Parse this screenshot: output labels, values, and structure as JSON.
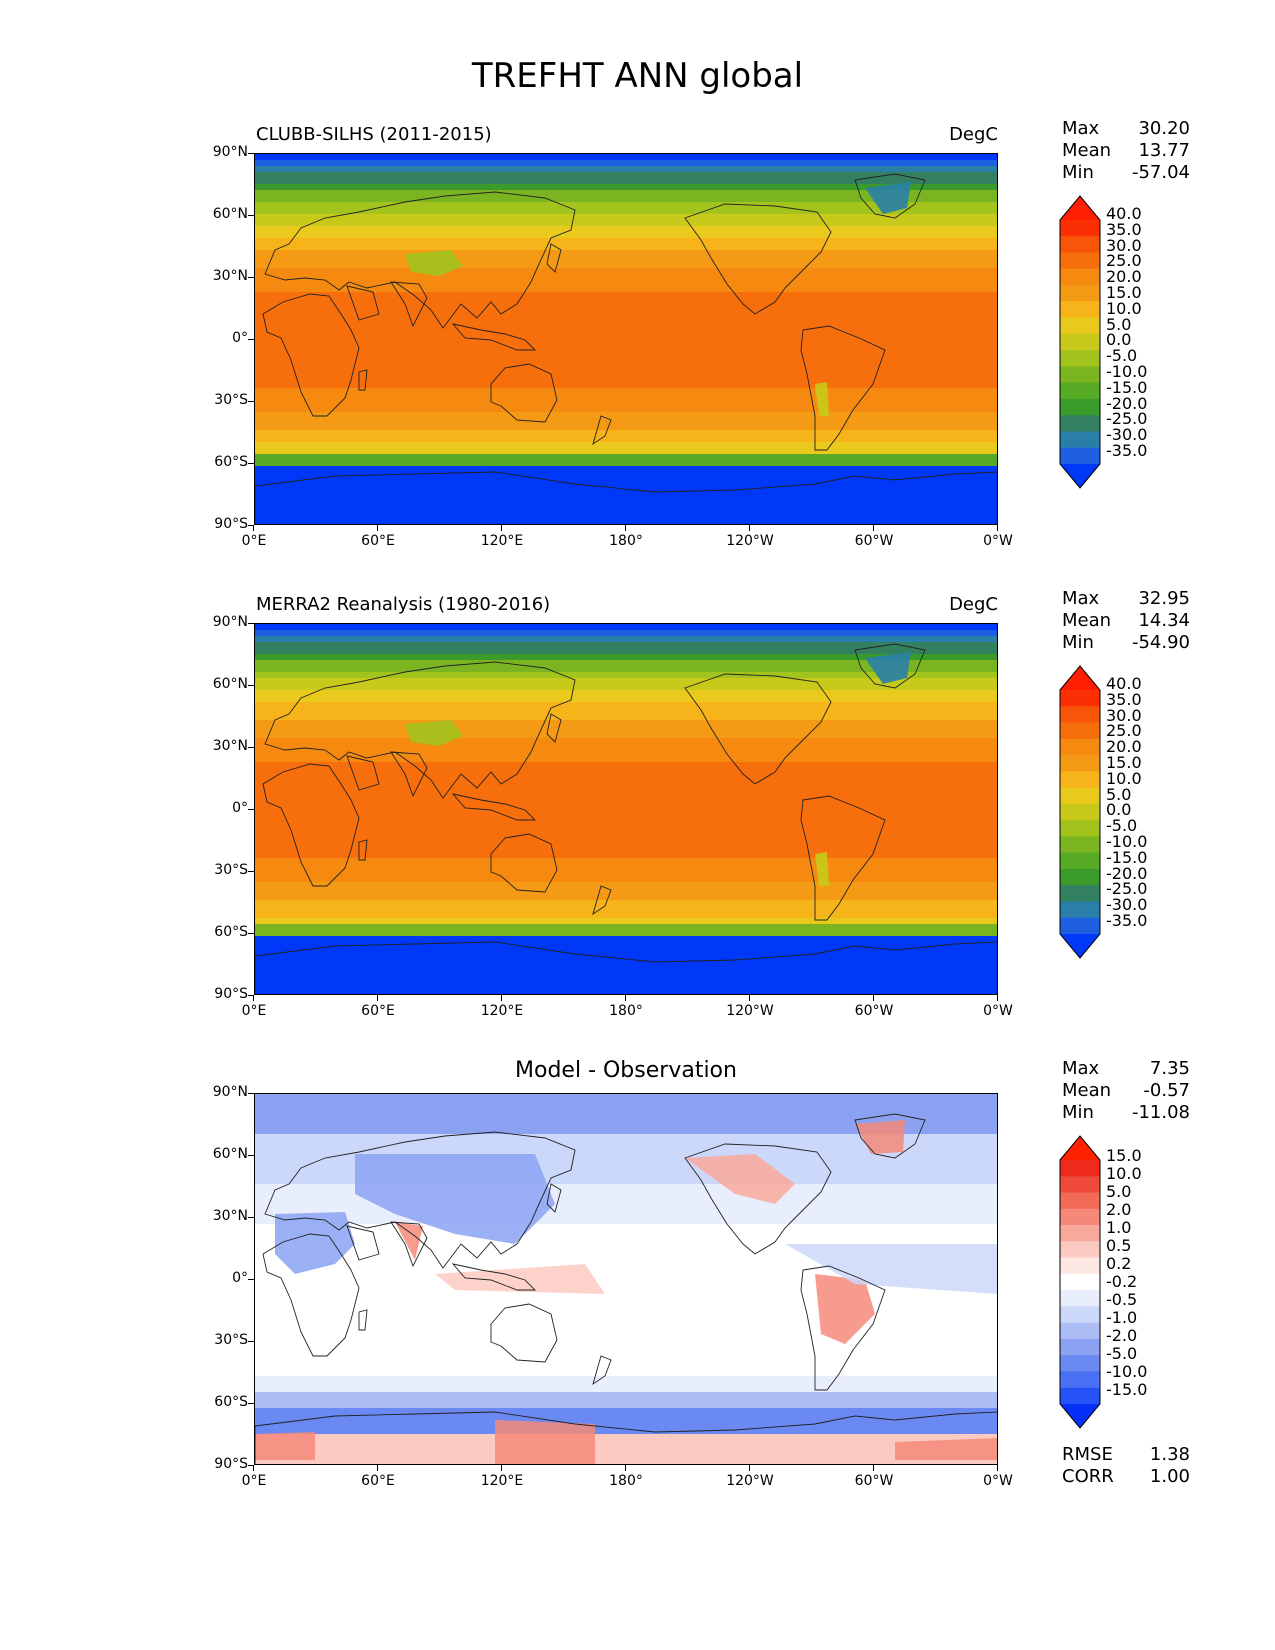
{
  "figure": {
    "title": "TREFHT ANN global"
  },
  "axes": {
    "lat_labels": [
      "90°N",
      "60°N",
      "30°N",
      "0°",
      "30°S",
      "60°S",
      "90°S"
    ],
    "lon_labels": [
      "0°E",
      "60°E",
      "120°E",
      "180°",
      "120°W",
      "60°W",
      "0°W"
    ]
  },
  "colors": {
    "temperature_scale": [
      "#0038f8",
      "#1e5fe0",
      "#2a7fa8",
      "#338060",
      "#3a9a2a",
      "#57aa23",
      "#7bb421",
      "#a3c31d",
      "#c8ca1b",
      "#e8c91c",
      "#f6b41a",
      "#f59a14",
      "#f68a10",
      "#f76e0c",
      "#f95508",
      "#fa2f04",
      "#ff1e00"
    ],
    "difference_scale": [
      "#0530f8",
      "#2452f6",
      "#4a70f3",
      "#6a89f2",
      "#8ba2f3",
      "#acbdf6",
      "#ccd8f9",
      "#e8eefc",
      "#ffffff",
      "#fde8e4",
      "#fbcac2",
      "#f9a99c",
      "#f58979",
      "#f26a58",
      "#ef4a3a",
      "#ee2a1c",
      "#ff2200"
    ],
    "land_outline": "#222222"
  },
  "panels": [
    {
      "id": "model",
      "title": "CLUBB-SILHS (2011-2015)",
      "units": "DegC",
      "stats": {
        "max_label": "Max",
        "max": "30.20",
        "mean_label": "Mean",
        "mean": "13.77",
        "min_label": "Min",
        "min": "-57.04"
      },
      "colorbar_labels": [
        "40.0",
        "35.0",
        "30.0",
        "25.0",
        "20.0",
        "15.0",
        "10.0",
        "5.0",
        "0.0",
        "-5.0",
        "-10.0",
        "-15.0",
        "-20.0",
        "-25.0",
        "-30.0",
        "-35.0"
      ]
    },
    {
      "id": "observation",
      "title": "MERRA2 Reanalysis (1980-2016)",
      "units": "DegC",
      "stats": {
        "max_label": "Max",
        "max": "32.95",
        "mean_label": "Mean",
        "mean": "14.34",
        "min_label": "Min",
        "min": "-54.90"
      },
      "colorbar_labels": [
        "40.0",
        "35.0",
        "30.0",
        "25.0",
        "20.0",
        "15.0",
        "10.0",
        "5.0",
        "0.0",
        "-5.0",
        "-10.0",
        "-15.0",
        "-20.0",
        "-25.0",
        "-30.0",
        "-35.0"
      ]
    },
    {
      "id": "difference",
      "title": "Model - Observation",
      "stats": {
        "max_label": "Max",
        "max": "7.35",
        "mean_label": "Mean",
        "mean": "-0.57",
        "min_label": "Min",
        "min": "-11.08"
      },
      "colorbar_labels": [
        "15.0",
        "10.0",
        "5.0",
        "2.0",
        "1.0",
        "0.5",
        "0.2",
        "-0.2",
        "-0.5",
        "-1.0",
        "-2.0",
        "-5.0",
        "-10.0",
        "-15.0"
      ],
      "metrics": {
        "rmse_label": "RMSE",
        "rmse": "1.38",
        "corr_label": "CORR",
        "corr": "1.00"
      }
    }
  ]
}
